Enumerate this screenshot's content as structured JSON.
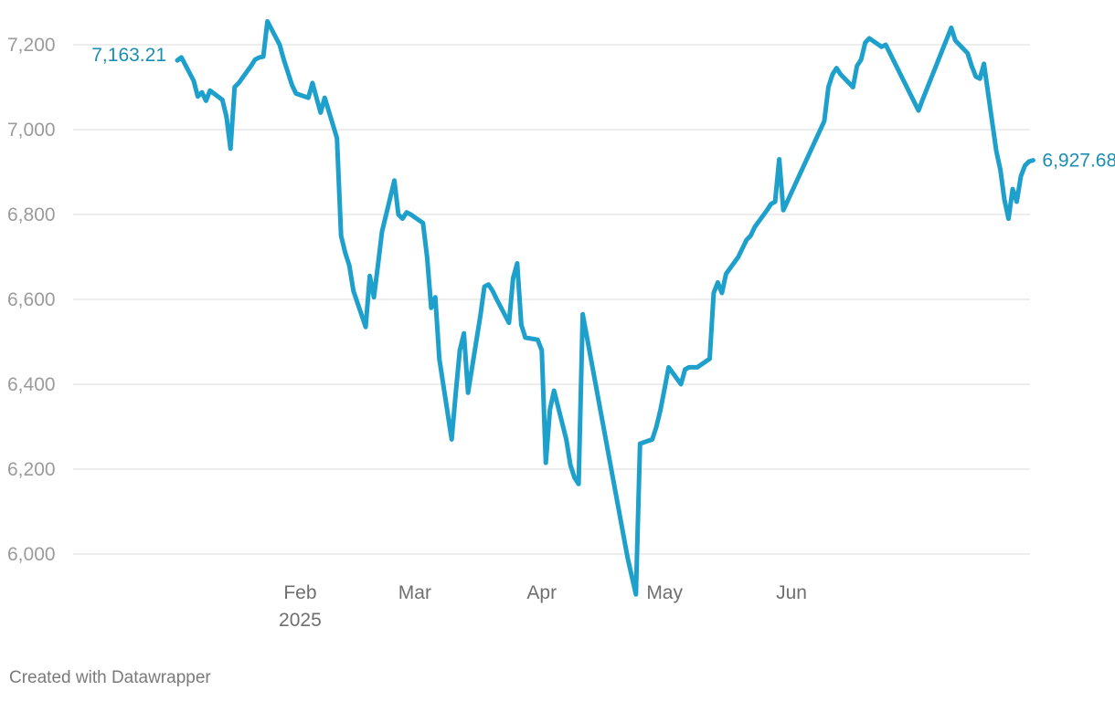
{
  "credit": "Created with Datawrapper",
  "colors": {
    "line": "#1ea0cc",
    "label": "#1a8fb3",
    "grid": "#e2e2e2",
    "tick": "#9b9b9b"
  },
  "chart_data": {
    "type": "line",
    "title": "",
    "xlabel": "",
    "ylabel": "",
    "ylim": [
      5900,
      7260
    ],
    "yticks": [
      6000,
      6200,
      6400,
      6600,
      6800,
      7000,
      7200
    ],
    "ytick_labels": [
      "6,000",
      "6,200",
      "6,400",
      "6,600",
      "6,800",
      "7,000",
      "7,200"
    ],
    "xlim": [
      "2025-01-02",
      "2025-07-25"
    ],
    "xticks": [
      {
        "date": "2025-02-01",
        "label": "Feb",
        "sub": "2025"
      },
      {
        "date": "2025-03-01",
        "label": "Mar",
        "sub": ""
      },
      {
        "date": "2025-04-01",
        "label": "Apr",
        "sub": ""
      },
      {
        "date": "2025-05-01",
        "label": "May",
        "sub": ""
      },
      {
        "date": "2025-06-01",
        "label": "Jun",
        "sub": ""
      }
    ],
    "grid": true,
    "legend": "none",
    "start_label": "7,163.21",
    "end_label": "6,927.68",
    "series": [
      {
        "values": [
          [
            "2025-01-02",
            7163
          ],
          [
            "2025-01-03",
            7170
          ],
          [
            "2025-01-06",
            7115
          ],
          [
            "2025-01-07",
            7078
          ],
          [
            "2025-01-08",
            7088
          ],
          [
            "2025-01-09",
            7068
          ],
          [
            "2025-01-10",
            7092
          ],
          [
            "2025-01-13",
            7070
          ],
          [
            "2025-01-14",
            7030
          ],
          [
            "2025-01-15",
            6955
          ],
          [
            "2025-01-16",
            7100
          ],
          [
            "2025-01-17",
            7110
          ],
          [
            "2025-01-20",
            7150
          ],
          [
            "2025-01-21",
            7165
          ],
          [
            "2025-01-22",
            7170
          ],
          [
            "2025-01-23",
            7172
          ],
          [
            "2025-01-24",
            7255
          ],
          [
            "2025-01-27",
            7200
          ],
          [
            "2025-01-28",
            7165
          ],
          [
            "2025-01-29",
            7135
          ],
          [
            "2025-01-30",
            7105
          ],
          [
            "2025-01-31",
            7085
          ],
          [
            "2025-02-03",
            7075
          ],
          [
            "2025-02-04",
            7110
          ],
          [
            "2025-02-05",
            7075
          ],
          [
            "2025-02-06",
            7040
          ],
          [
            "2025-02-07",
            7075
          ],
          [
            "2025-02-10",
            6980
          ],
          [
            "2025-02-11",
            6750
          ],
          [
            "2025-02-12",
            6710
          ],
          [
            "2025-02-13",
            6680
          ],
          [
            "2025-02-14",
            6620
          ],
          [
            "2025-02-17",
            6535
          ],
          [
            "2025-02-18",
            6655
          ],
          [
            "2025-02-19",
            6605
          ],
          [
            "2025-02-20",
            6680
          ],
          [
            "2025-02-21",
            6760
          ],
          [
            "2025-02-24",
            6880
          ],
          [
            "2025-02-25",
            6800
          ],
          [
            "2025-02-26",
            6790
          ],
          [
            "2025-02-27",
            6805
          ],
          [
            "2025-02-28",
            6800
          ],
          [
            "2025-03-03",
            6780
          ],
          [
            "2025-03-04",
            6700
          ],
          [
            "2025-03-05",
            6580
          ],
          [
            "2025-03-06",
            6605
          ],
          [
            "2025-03-07",
            6460
          ],
          [
            "2025-03-10",
            6270
          ],
          [
            "2025-03-11",
            6380
          ],
          [
            "2025-03-12",
            6480
          ],
          [
            "2025-03-13",
            6520
          ],
          [
            "2025-03-14",
            6380
          ],
          [
            "2025-03-17",
            6560
          ],
          [
            "2025-03-18",
            6630
          ],
          [
            "2025-03-19",
            6635
          ],
          [
            "2025-03-20",
            6620
          ],
          [
            "2025-03-21",
            6600
          ],
          [
            "2025-03-24",
            6545
          ],
          [
            "2025-03-25",
            6650
          ],
          [
            "2025-03-26",
            6685
          ],
          [
            "2025-03-27",
            6540
          ],
          [
            "2025-03-28",
            6510
          ],
          [
            "2025-03-31",
            6505
          ],
          [
            "2025-04-01",
            6480
          ],
          [
            "2025-04-02",
            6215
          ],
          [
            "2025-04-03",
            6340
          ],
          [
            "2025-04-04",
            6385
          ],
          [
            "2025-04-07",
            6270
          ],
          [
            "2025-04-08",
            6210
          ],
          [
            "2025-04-09",
            6180
          ],
          [
            "2025-04-10",
            6165
          ],
          [
            "2025-04-11",
            6565
          ],
          [
            "2025-04-22",
            5990
          ],
          [
            "2025-04-24",
            5905
          ],
          [
            "2025-04-25",
            6260
          ],
          [
            "2025-04-28",
            6270
          ],
          [
            "2025-04-29",
            6300
          ],
          [
            "2025-04-30",
            6340
          ],
          [
            "2025-05-01",
            6390
          ],
          [
            "2025-05-02",
            6440
          ],
          [
            "2025-05-05",
            6400
          ],
          [
            "2025-05-06",
            6435
          ],
          [
            "2025-05-07",
            6440
          ],
          [
            "2025-05-08",
            6440
          ],
          [
            "2025-05-09",
            6440
          ],
          [
            "2025-05-12",
            6460
          ],
          [
            "2025-05-13",
            6615
          ],
          [
            "2025-05-14",
            6640
          ],
          [
            "2025-05-15",
            6615
          ],
          [
            "2025-05-16",
            6660
          ],
          [
            "2025-05-19",
            6700
          ],
          [
            "2025-05-20",
            6720
          ],
          [
            "2025-05-21",
            6740
          ],
          [
            "2025-05-22",
            6750
          ],
          [
            "2025-05-23",
            6770
          ],
          [
            "2025-05-26",
            6810
          ],
          [
            "2025-05-27",
            6825
          ],
          [
            "2025-05-28",
            6830
          ],
          [
            "2025-05-29",
            6930
          ],
          [
            "2025-05-30",
            6810
          ],
          [
            "2025-06-09",
            7020
          ],
          [
            "2025-06-10",
            7100
          ],
          [
            "2025-06-11",
            7130
          ],
          [
            "2025-06-12",
            7145
          ],
          [
            "2025-06-13",
            7130
          ],
          [
            "2025-06-16",
            7100
          ],
          [
            "2025-06-17",
            7150
          ],
          [
            "2025-06-18",
            7165
          ],
          [
            "2025-06-19",
            7205
          ],
          [
            "2025-06-20",
            7215
          ],
          [
            "2025-06-23",
            7195
          ],
          [
            "2025-06-24",
            7200
          ],
          [
            "2025-07-02",
            7045
          ],
          [
            "2025-07-03",
            7070
          ],
          [
            "2025-07-10",
            7240
          ],
          [
            "2025-07-11",
            7210
          ],
          [
            "2025-07-14",
            7180
          ],
          [
            "2025-07-15",
            7150
          ],
          [
            "2025-07-16",
            7125
          ],
          [
            "2025-07-17",
            7120
          ],
          [
            "2025-07-18",
            7155
          ],
          [
            "2025-07-21",
            6950
          ],
          [
            "2025-07-22",
            6905
          ],
          [
            "2025-07-23",
            6835
          ],
          [
            "2025-07-24",
            6790
          ],
          [
            "2025-07-25",
            6860
          ],
          [
            "2025-07-26",
            6830
          ],
          [
            "2025-07-27",
            6890
          ],
          [
            "2025-07-28",
            6915
          ],
          [
            "2025-07-29",
            6925
          ],
          [
            "2025-07-30",
            6927.68
          ]
        ]
      }
    ]
  }
}
